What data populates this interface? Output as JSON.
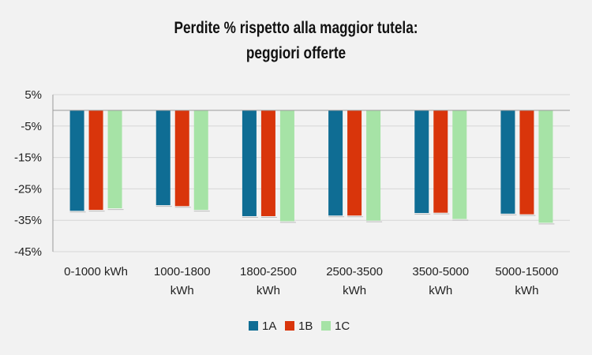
{
  "chart_data": {
    "type": "bar",
    "title_lines": [
      "Perdite % rispetto alla maggior tutela:",
      "peggiori offerte"
    ],
    "categories": [
      [
        "0-1000 kWh"
      ],
      [
        "1000-1800",
        "kWh"
      ],
      [
        "1800-2500",
        "kWh"
      ],
      [
        "2500-3500",
        "kWh"
      ],
      [
        "3500-5000",
        "kWh"
      ],
      [
        "5000-15000",
        "kWh"
      ]
    ],
    "series": [
      {
        "name": "1A",
        "color": "#0f6d94",
        "values": [
          -32.0,
          -30.2,
          -33.7,
          -33.5,
          -32.7,
          -32.9
        ]
      },
      {
        "name": "1B",
        "color": "#d9350b",
        "values": [
          -31.7,
          -30.5,
          -33.7,
          -33.5,
          -32.6,
          -33.1
        ]
      },
      {
        "name": "1C",
        "color": "#a6e3a6",
        "values": [
          -31.2,
          -31.7,
          -35.3,
          -35.1,
          -34.6,
          -35.8
        ]
      }
    ],
    "ylim": [
      -45,
      5
    ],
    "yticks": [
      5,
      -5,
      -15,
      -25,
      -35,
      -45
    ],
    "ytick_labels": [
      "5%",
      "-5%",
      "-15%",
      "-25%",
      "-35%",
      "-45%"
    ],
    "grid": true,
    "legend_position": "bottom"
  }
}
